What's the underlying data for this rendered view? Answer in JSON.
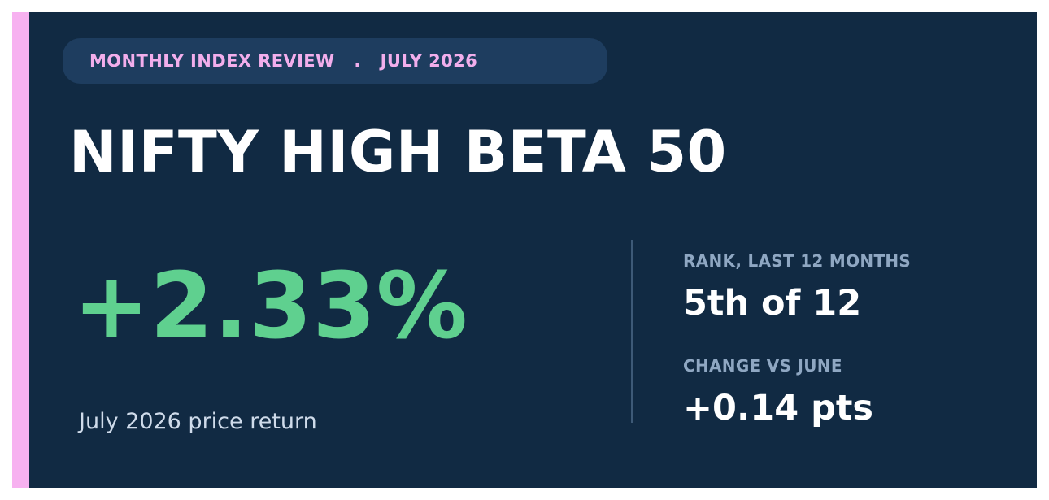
{
  "header": {
    "eyebrow": "MONTHLY INDEX REVIEW",
    "separator": ".",
    "period": "JULY 2026"
  },
  "title": "NIFTY HIGH BETA 50",
  "headline": {
    "value": "+2.33%",
    "caption": "July 2026 price return"
  },
  "stats": {
    "rank": {
      "label": "RANK, LAST 12 MONTHS",
      "value": "5th of 12"
    },
    "change": {
      "label": "CHANGE VS JUNE",
      "value": "+0.14 pts"
    }
  },
  "colors": {
    "background": "#112a43",
    "accent": "#f7b1f0",
    "pill": "#1e3d5f",
    "positive": "#5fd08f",
    "label": "#8fa7c2"
  }
}
